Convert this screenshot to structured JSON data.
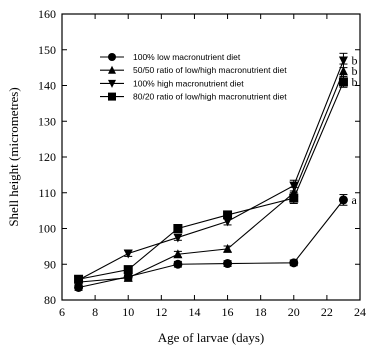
{
  "chart_data": {
    "type": "line",
    "xlabel": "Age of larvae (days)",
    "ylabel": "Shell height (micrometres)",
    "xlim": [
      6,
      24
    ],
    "ylim": [
      80,
      160
    ],
    "xticks": [
      6,
      8,
      10,
      12,
      14,
      16,
      18,
      20,
      22,
      24
    ],
    "yticks": [
      80,
      90,
      100,
      110,
      120,
      130,
      140,
      150,
      160
    ],
    "grid": false,
    "legend_position": "upper-left",
    "series": [
      {
        "name": "100% low macronutrient diet",
        "marker": "circle",
        "x": [
          7,
          10,
          13,
          16,
          20,
          23
        ],
        "y": [
          83.5,
          86.5,
          90,
          90.2,
          90.4,
          108
        ],
        "err": [
          0.8,
          0.8,
          0.8,
          0.8,
          0.8,
          1.5
        ],
        "label": "a"
      },
      {
        "name": "50/50 ratio of low/high macronutrient diet",
        "marker": "triangle-up",
        "x": [
          7,
          10,
          13,
          16,
          20,
          23
        ],
        "y": [
          85,
          86.2,
          92.8,
          94.3,
          110,
          144
        ],
        "err": [
          0.8,
          0.8,
          0.8,
          0.8,
          1.5,
          2
        ],
        "label": "b"
      },
      {
        "name": "100% high macronutrient diet",
        "marker": "triangle-down",
        "x": [
          7,
          10,
          13,
          16,
          20,
          23
        ],
        "y": [
          85.6,
          93,
          97.5,
          102,
          112,
          147
        ],
        "err": [
          0.8,
          0.8,
          0.8,
          1,
          1.5,
          2
        ],
        "label": "b"
      },
      {
        "name": "80/20 ratio of low/high macronutrient diet",
        "marker": "square",
        "x": [
          7,
          10,
          13,
          16,
          20,
          23
        ],
        "y": [
          85.8,
          88.5,
          100,
          103.8,
          108.5,
          141
        ],
        "err": [
          0.8,
          0.8,
          0.8,
          1,
          1.5,
          1.5
        ],
        "label": "b"
      }
    ]
  }
}
